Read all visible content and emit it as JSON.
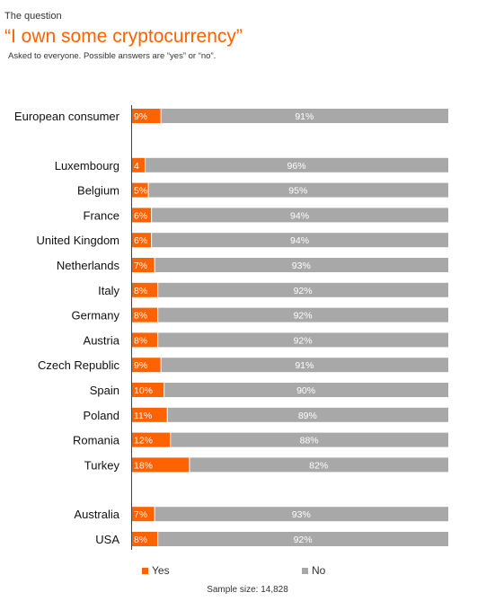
{
  "header": {
    "kicker": "The question",
    "title": "“I own some cryptocurrency”",
    "subtitle": "Asked to everyone. Possible answers are “yes” or “no”."
  },
  "colors": {
    "yes": "#ff6200",
    "no": "#a8a8a8",
    "label": "#111111"
  },
  "chart_data": {
    "type": "bar",
    "orientation": "horizontal",
    "stacked": true,
    "unit": "%",
    "xlim": [
      0,
      100
    ],
    "grid": false,
    "legend_position": "bottom",
    "groups": [
      {
        "categories": [
          "European consumer"
        ]
      },
      {
        "categories": [
          "Luxembourg",
          "Belgium",
          "France",
          "United Kingdom",
          "Netherlands",
          "Italy",
          "Germany",
          "Austria",
          "Czech Republic",
          "Spain",
          "Poland",
          "Romania",
          "Turkey"
        ]
      },
      {
        "categories": [
          "Australia",
          "USA"
        ]
      }
    ],
    "categories": [
      "European consumer",
      "Luxembourg",
      "Belgium",
      "France",
      "United Kingdom",
      "Netherlands",
      "Italy",
      "Germany",
      "Austria",
      "Czech Republic",
      "Spain",
      "Poland",
      "Romania",
      "Turkey",
      "Australia",
      "USA"
    ],
    "series": [
      {
        "name": "Yes",
        "values": [
          9,
          4,
          5,
          6,
          6,
          7,
          8,
          8,
          8,
          9,
          10,
          11,
          12,
          18,
          7,
          8
        ],
        "labels": [
          "9%",
          "4",
          "5%",
          "6%",
          "6%",
          "7%",
          "8%",
          "8%",
          "8%",
          "9%",
          "10%",
          "11%",
          "12%",
          "18%",
          "7%",
          "8%"
        ]
      },
      {
        "name": "No",
        "values": [
          91,
          96,
          95,
          94,
          94,
          93,
          92,
          92,
          92,
          91,
          90,
          89,
          88,
          82,
          93,
          92
        ],
        "labels": [
          "91%",
          "96%",
          "95%",
          "94%",
          "94%",
          "93%",
          "92%",
          "92%",
          "92%",
          "91%",
          "90%",
          "89%",
          "88%",
          "82%",
          "93%",
          "92%"
        ]
      }
    ],
    "sample_size": "Sample size: 14,828"
  }
}
